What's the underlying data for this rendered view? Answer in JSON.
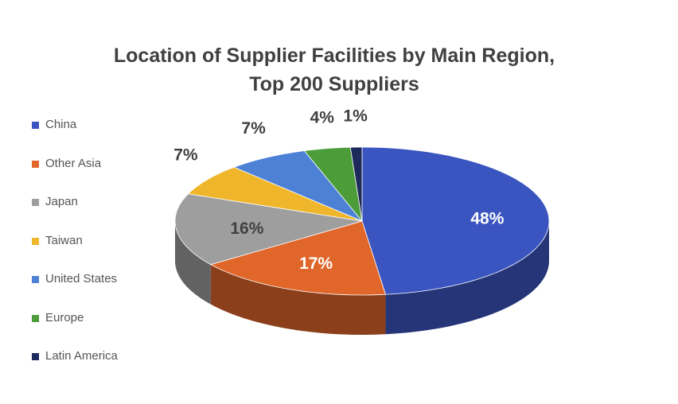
{
  "chart_data": {
    "type": "pie",
    "title_lines": [
      "Location of Supplier Facilities by Main Region,",
      "Top 200 Suppliers"
    ],
    "legend_position": "left",
    "style": "3d",
    "slices": [
      {
        "name": "China",
        "value": 48,
        "label": "48%",
        "color": "#3b55c0",
        "label_color": "#ffffff"
      },
      {
        "name": "Other Asia",
        "value": 17,
        "label": "17%",
        "color": "#e0662a",
        "label_color": "#ffffff"
      },
      {
        "name": "Japan",
        "value": 16,
        "label": "16%",
        "color": "#9e9e9e",
        "label_color": "#404040"
      },
      {
        "name": "Taiwan",
        "value": 7,
        "label": "7%",
        "color": "#f0b62b",
        "label_color": "#404040"
      },
      {
        "name": "United States",
        "value": 7,
        "label": "7%",
        "color": "#4d81d6",
        "label_color": "#404040"
      },
      {
        "name": "Europe",
        "value": 4,
        "label": "4%",
        "color": "#4c9c3a",
        "label_color": "#404040"
      },
      {
        "name": "Latin America",
        "value": 1,
        "label": "1%",
        "color": "#1c2a5c",
        "label_color": "#404040"
      }
    ]
  }
}
